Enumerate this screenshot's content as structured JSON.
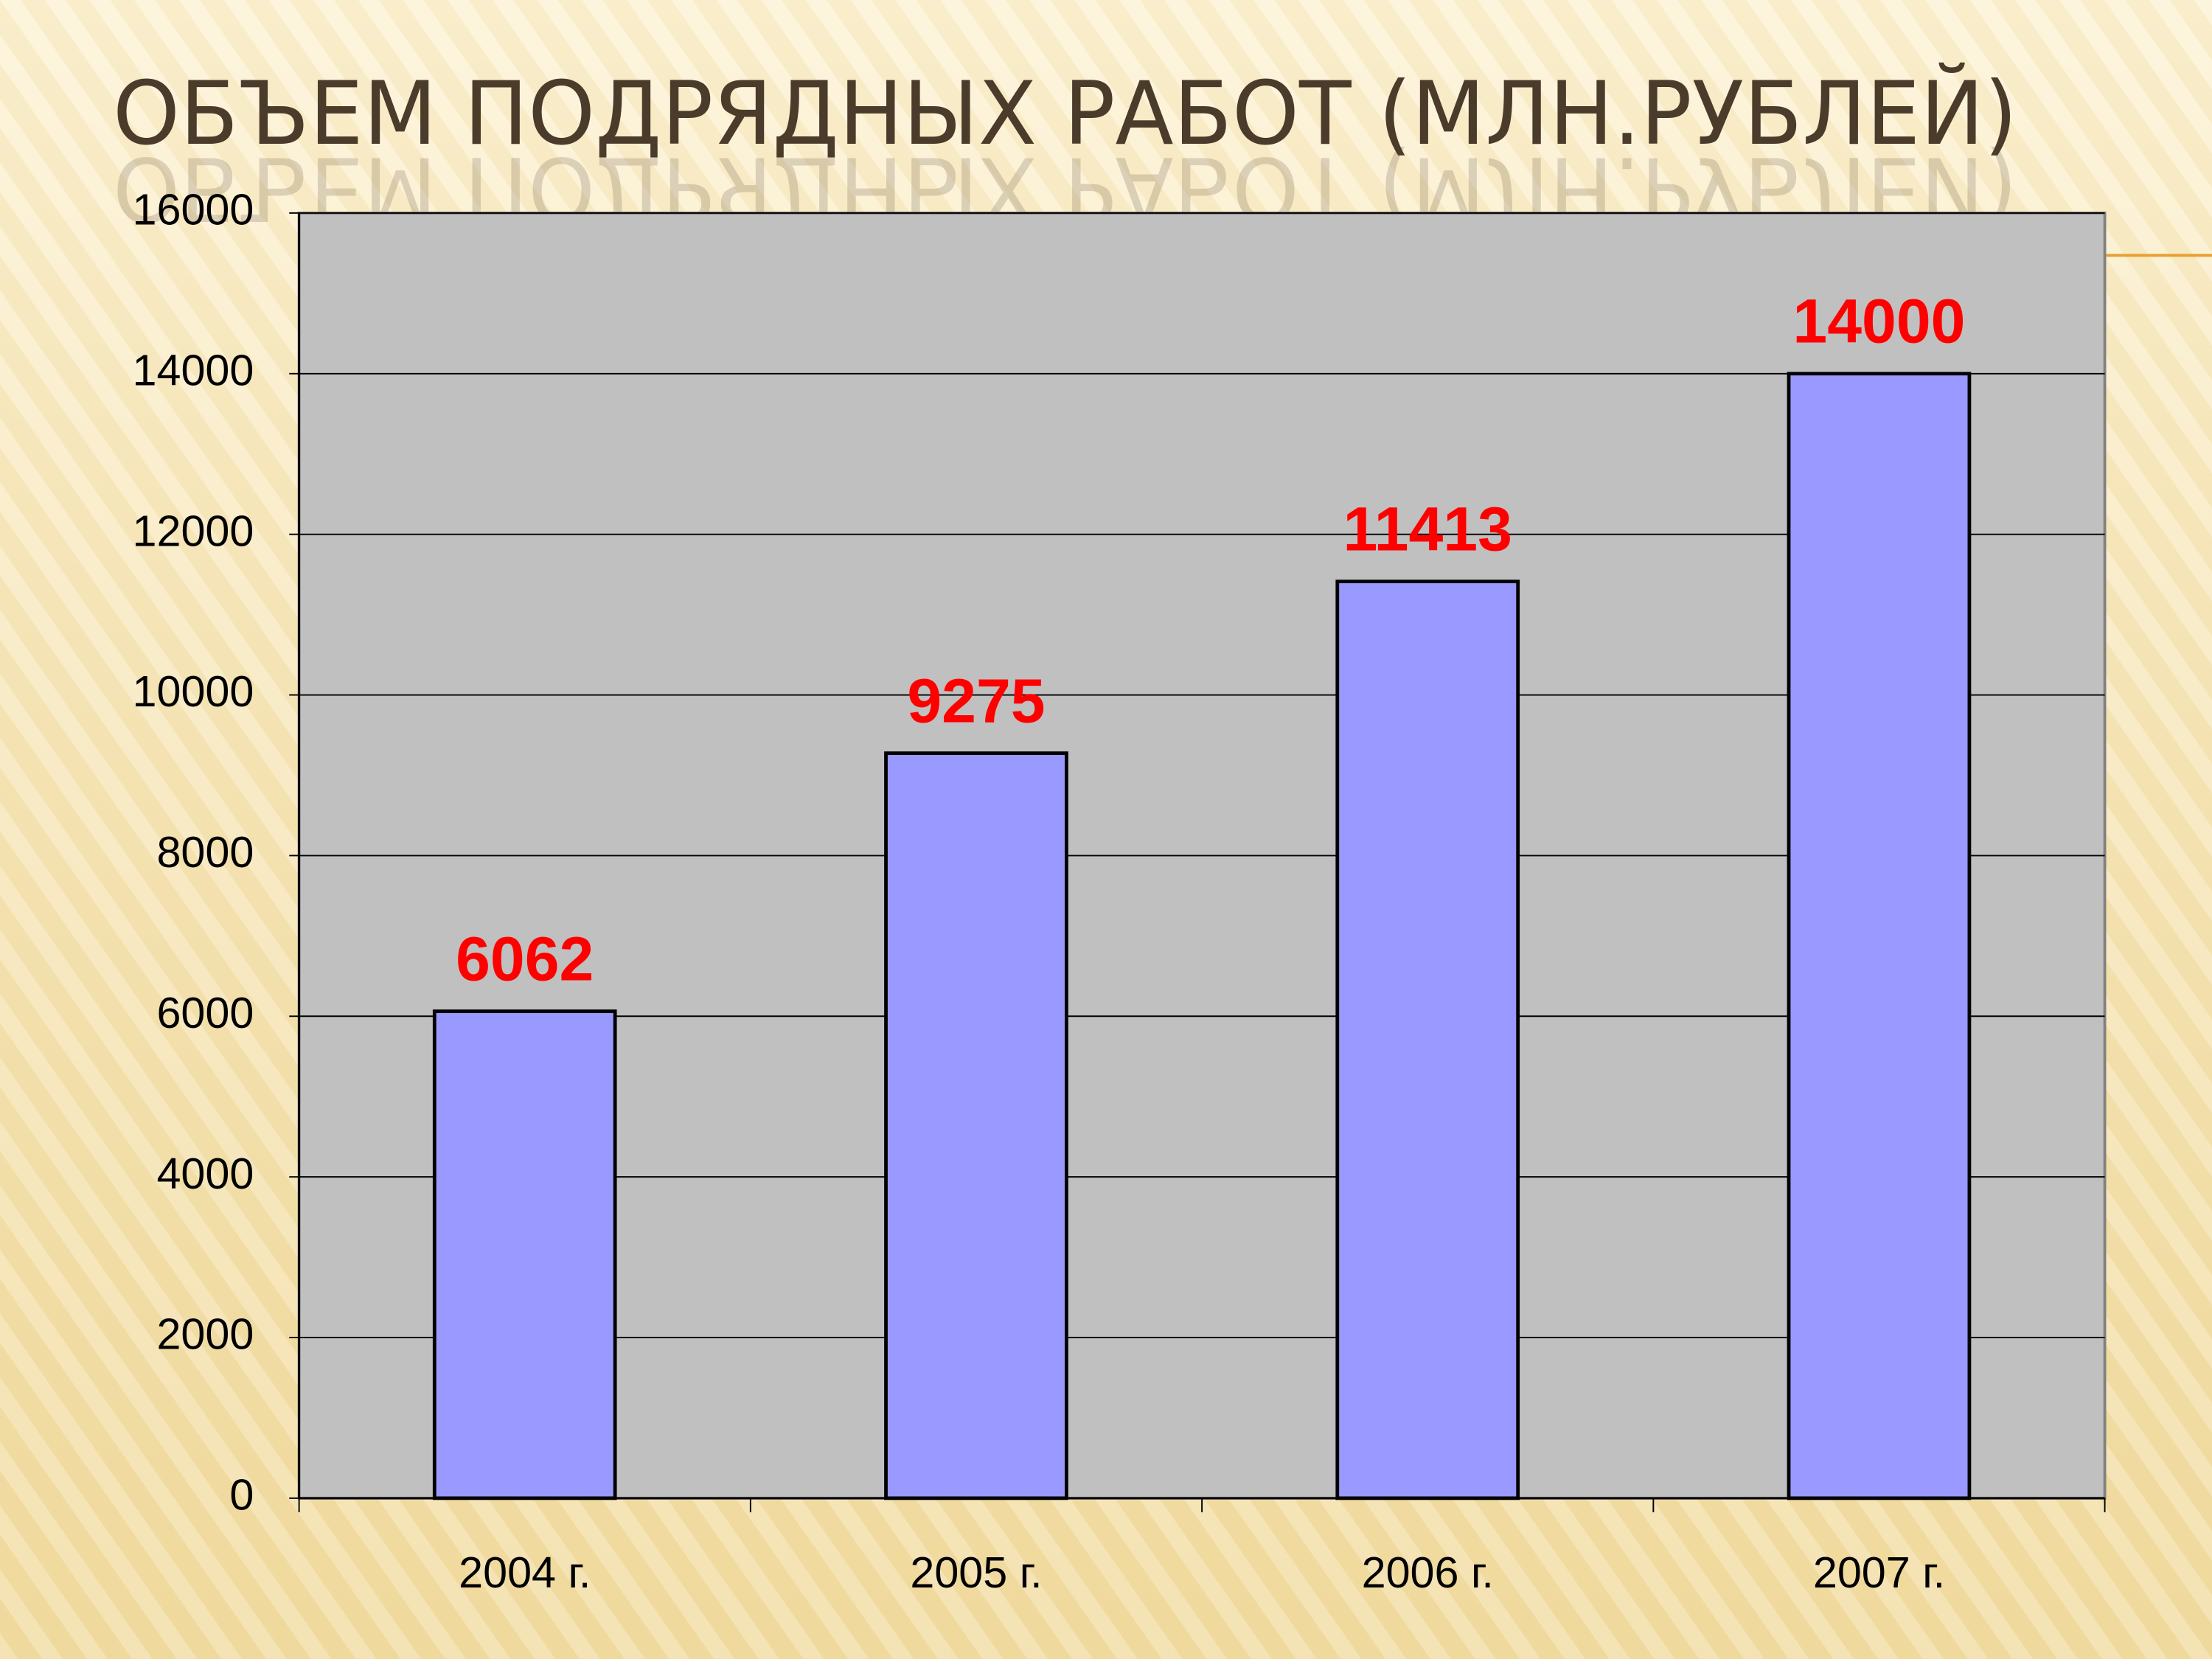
{
  "chart_data": {
    "type": "bar",
    "title": "ОБЪЕМ ПОДРЯДНЫХ РАБОТ (МЛН.РУБЛЕЙ)",
    "categories": [
      "2004 г.",
      "2005 г.",
      "2006 г.",
      "2007 г."
    ],
    "values": [
      6062,
      9275,
      11413,
      14000
    ],
    "color": "#9999ff",
    "label_color": "#ff0000",
    "plot_background": "#c0c0c0",
    "ylim": [
      0,
      16000
    ],
    "yticks": [
      0,
      2000,
      4000,
      6000,
      8000,
      10000,
      12000,
      14000,
      16000
    ],
    "grid": true
  }
}
